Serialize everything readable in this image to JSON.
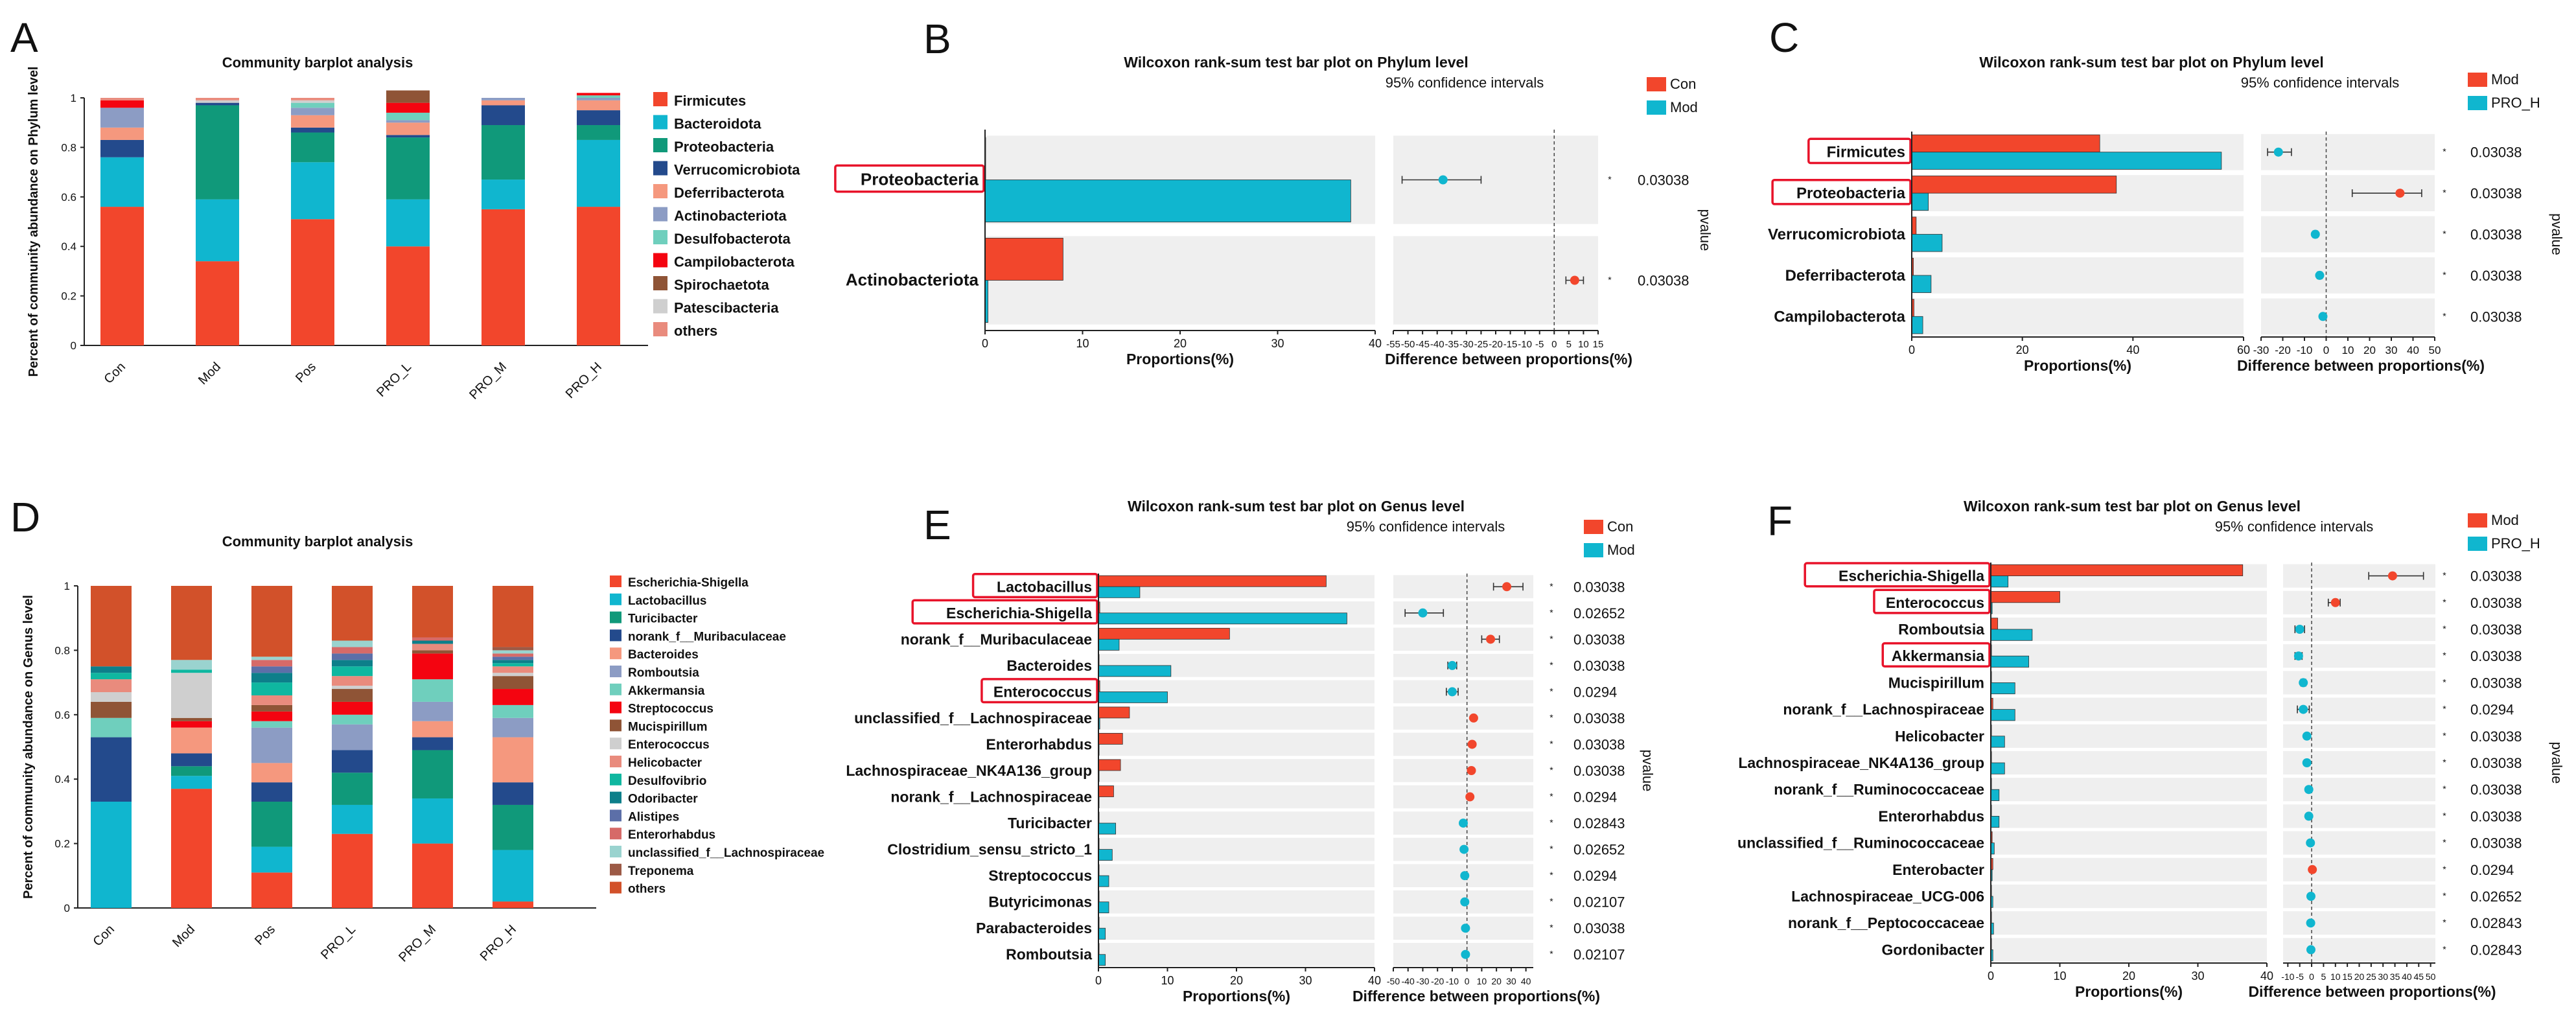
{
  "colors": {
    "red": "#f2462c",
    "teal": "#10b6cf",
    "panelbg": "#efefef",
    "frame": "#e8132a"
  },
  "panels": {
    "A": {
      "letter": "A",
      "title": "Community barplot analysis",
      "ylabel": "Percent of community abundance on Phylum level",
      "yticks": [
        "0",
        "0.2",
        "0.4",
        "0.6",
        "0.8",
        "1"
      ],
      "legend": [
        "Firmicutes",
        "Bacteroidota",
        "Proteobacteria",
        "Verrucomicrobiota",
        "Deferribacterota",
        "Actinobacteriota",
        "Desulfobacterota",
        "Campilobacterota",
        "Spirochaetota",
        "Patescibacteria",
        "others"
      ]
    },
    "B": {
      "letter": "B",
      "title": "Wilcoxon rank-sum test bar plot on Phylum level",
      "ci_label": "95% confidence intervals",
      "legend": [
        "Con",
        "Mod"
      ],
      "xlabel_left": "Proportions(%)",
      "xlabel_right": "Difference between proportions(%)",
      "pvalue_label": "pvalue",
      "left_ticks": [
        "0",
        "10",
        "20",
        "30",
        "40"
      ],
      "right_ticks": [
        "-55",
        "-50",
        "-45",
        "-40",
        "-35",
        "-30",
        "-25",
        "-20",
        "-15",
        "-10",
        "-5",
        "0",
        "5",
        "10",
        "15"
      ]
    },
    "C": {
      "letter": "C",
      "title": "Wilcoxon rank-sum test bar plot on Phylum level",
      "ci_label": "95% confidence intervals",
      "legend": [
        "Mod",
        "PRO_H"
      ],
      "xlabel_left": "Proportions(%)",
      "xlabel_right": "Difference between proportions(%)",
      "pvalue_label": "pvalue",
      "left_ticks": [
        "0",
        "20",
        "40",
        "60"
      ],
      "right_ticks": [
        "-30",
        "-20",
        "-10",
        "0",
        "10",
        "20",
        "30",
        "40",
        "50"
      ]
    },
    "D": {
      "letter": "D",
      "title": "Community barplot analysis",
      "ylabel": "Percent of community abundance on Genus level",
      "yticks": [
        "0",
        "0.2",
        "0.4",
        "0.6",
        "0.8",
        "1"
      ],
      "legend": [
        "Escherichia-Shigella",
        "Lactobacillus",
        "Turicibacter",
        "norank_f__Muribaculaceae",
        "Bacteroides",
        "Romboutsia",
        "Akkermansia",
        "Streptococcus",
        "Mucispirillum",
        "Enterococcus",
        "Helicobacter",
        "Desulfovibrio",
        "Odoribacter",
        "Alistipes",
        "Enterorhabdus",
        "unclassified_f__Lachnospiraceae",
        "Treponema",
        "others"
      ]
    },
    "E": {
      "letter": "E",
      "title": "Wilcoxon rank-sum test bar plot on Genus level",
      "ci_label": "95% confidence intervals",
      "legend": [
        "Con",
        "Mod"
      ],
      "xlabel_left": "Proportions(%)",
      "xlabel_right": "Difference between proportions(%)",
      "pvalue_label": "pvalue",
      "left_ticks": [
        "0",
        "10",
        "20",
        "30",
        "40"
      ],
      "right_ticks": [
        "-50",
        "-40",
        "-30",
        "-20",
        "-10",
        "0",
        "10",
        "20",
        "30",
        "40"
      ]
    },
    "F": {
      "letter": "F",
      "title": "Wilcoxon rank-sum test bar plot on Genus level",
      "ci_label": "95% confidence intervals",
      "legend": [
        "Mod",
        "PRO_H"
      ],
      "xlabel_left": "Proportions(%)",
      "xlabel_right": "Difference between proportions(%)",
      "pvalue_label": "pvalue",
      "left_ticks": [
        "0",
        "10",
        "20",
        "30",
        "40"
      ],
      "right_ticks": [
        "-10",
        "-5",
        "0",
        "5",
        "10",
        "15",
        "20",
        "25",
        "30",
        "35",
        "40",
        "45",
        "50"
      ]
    }
  },
  "chart_data": [
    {
      "id": "A",
      "type": "bar",
      "stacked": true,
      "categories": [
        "Con",
        "Mod",
        "Pos",
        "PRO_L",
        "PRO_M",
        "PRO_H"
      ],
      "ylim": [
        0,
        1
      ],
      "series": [
        {
          "name": "Firmicutes",
          "color": "#f2462c",
          "values": [
            0.56,
            0.34,
            0.51,
            0.4,
            0.55,
            0.56
          ]
        },
        {
          "name": "Bacteroidota",
          "color": "#10b6cf",
          "values": [
            0.2,
            0.25,
            0.23,
            0.19,
            0.12,
            0.27
          ]
        },
        {
          "name": "Proteobacteria",
          "color": "#10997a",
          "values": [
            0.0,
            0.38,
            0.12,
            0.25,
            0.22,
            0.06
          ]
        },
        {
          "name": "Verrucomicrobiota",
          "color": "#234a8c",
          "values": [
            0.07,
            0.01,
            0.02,
            0.01,
            0.08,
            0.06
          ]
        },
        {
          "name": "Deferribacterota",
          "color": "#f5987e",
          "values": [
            0.05,
            0.0,
            0.05,
            0.05,
            0.02,
            0.04
          ]
        },
        {
          "name": "Actinobacteriota",
          "color": "#8c9cc4",
          "values": [
            0.08,
            0.0,
            0.03,
            0.01,
            0.01,
            0.01
          ]
        },
        {
          "name": "Desulfobacterota",
          "color": "#6fcfbd",
          "values": [
            0.0,
            0.0,
            0.02,
            0.03,
            0.0,
            0.01
          ]
        },
        {
          "name": "Campilobacterota",
          "color": "#f40410",
          "values": [
            0.03,
            0.0,
            0.0,
            0.04,
            0.0,
            0.01
          ]
        },
        {
          "name": "Spirochaetota",
          "color": "#8f5436",
          "values": [
            0.0,
            0.0,
            0.0,
            0.05,
            0.0,
            0.0
          ]
        },
        {
          "name": "Patescibacteria",
          "color": "#cfcfcf",
          "values": [
            0.0,
            0.01,
            0.01,
            0.0,
            0.0,
            0.0
          ]
        },
        {
          "name": "others",
          "color": "#e98b7d",
          "values": [
            0.01,
            0.01,
            0.01,
            0.0,
            0.0,
            0.0
          ]
        }
      ]
    },
    {
      "id": "B",
      "type": "bar",
      "orientation": "horizontal",
      "categories": [
        "Proteobacteria",
        "Actinobacteriota"
      ],
      "series": [
        {
          "name": "Con",
          "values": [
            0.0,
            8.0
          ]
        },
        {
          "name": "Mod",
          "values": [
            37.5,
            0.3
          ]
        }
      ],
      "xlim": [
        0,
        40
      ],
      "difference": [
        -38,
        7
      ],
      "ci_low": [
        -52,
        4
      ],
      "ci_high": [
        -25,
        10
      ],
      "diff_xlim": [
        -55,
        15
      ],
      "pvalues": [
        "0.03038",
        "0.03038"
      ]
    },
    {
      "id": "C",
      "type": "bar",
      "orientation": "horizontal",
      "categories": [
        "Firmicutes",
        "Proteobacteria",
        "Verrucomicrobiota",
        "Deferribacterota",
        "Campilobacterota"
      ],
      "series": [
        {
          "name": "Mod",
          "values": [
            34,
            37,
            0.8,
            0.3,
            0.4
          ]
        },
        {
          "name": "PRO_H",
          "values": [
            56,
            3,
            5.5,
            3.5,
            2
          ]
        }
      ],
      "xlim": [
        0,
        60
      ],
      "difference": [
        -22,
        34,
        -5,
        -3,
        -1.5
      ],
      "ci_low": [
        -27,
        12,
        -6,
        -4,
        -2
      ],
      "ci_high": [
        -16,
        44,
        -4,
        -2,
        -1
      ],
      "diff_xlim": [
        -30,
        50
      ],
      "pvalues": [
        "0.03038",
        "0.03038",
        "0.03038",
        "0.03038",
        "0.03038"
      ]
    },
    {
      "id": "D",
      "type": "bar",
      "stacked": true,
      "categories": [
        "Con",
        "Mod",
        "Pos",
        "PRO_L",
        "PRO_M",
        "PRO_H"
      ],
      "ylim": [
        0,
        1
      ],
      "series": [
        {
          "name": "Escherichia-Shigella",
          "color": "#f2462c",
          "values": [
            0.0,
            0.37,
            0.11,
            0.23,
            0.2,
            0.02
          ]
        },
        {
          "name": "Lactobacillus",
          "color": "#10b6cf",
          "values": [
            0.33,
            0.04,
            0.08,
            0.09,
            0.14,
            0.16
          ]
        },
        {
          "name": "Turicibacter",
          "color": "#10997a",
          "values": [
            0.0,
            0.03,
            0.14,
            0.1,
            0.15,
            0.14
          ]
        },
        {
          "name": "norank_f__Muribaculaceae",
          "color": "#234a8c",
          "values": [
            0.2,
            0.04,
            0.06,
            0.07,
            0.04,
            0.07
          ]
        },
        {
          "name": "Bacteroides",
          "color": "#f5987e",
          "values": [
            0.0,
            0.08,
            0.06,
            0.0,
            0.05,
            0.14
          ]
        },
        {
          "name": "Romboutsia",
          "color": "#8c9cc4",
          "values": [
            0.0,
            0.0,
            0.11,
            0.08,
            0.06,
            0.06
          ]
        },
        {
          "name": "Akkermansia",
          "color": "#6fcfbd",
          "values": [
            0.06,
            0.0,
            0.02,
            0.03,
            0.07,
            0.04
          ]
        },
        {
          "name": "Streptococcus",
          "color": "#f40410",
          "values": [
            0.0,
            0.02,
            0.03,
            0.04,
            0.08,
            0.05
          ]
        },
        {
          "name": "Mucispirillum",
          "color": "#8f5436",
          "values": [
            0.05,
            0.01,
            0.02,
            0.04,
            0.01,
            0.04
          ]
        },
        {
          "name": "Enterococcus",
          "color": "#cfcfcf",
          "values": [
            0.03,
            0.14,
            0.0,
            0.01,
            0.0,
            0.01
          ]
        },
        {
          "name": "Helicobacter",
          "color": "#e98b7d",
          "values": [
            0.04,
            0.0,
            0.03,
            0.03,
            0.02,
            0.02
          ]
        },
        {
          "name": "Desulfovibrio",
          "color": "#0fb7a0",
          "values": [
            0.02,
            0.01,
            0.04,
            0.03,
            0.0,
            0.01
          ]
        },
        {
          "name": "Odoribacter",
          "color": "#0d7f8a",
          "values": [
            0.02,
            0.0,
            0.03,
            0.02,
            0.01,
            0.01
          ]
        },
        {
          "name": "Alistipes",
          "color": "#5c6fa8",
          "values": [
            0.0,
            0.0,
            0.02,
            0.02,
            0.0,
            0.01
          ]
        },
        {
          "name": "Enterorhabdus",
          "color": "#d66a68",
          "values": [
            0.0,
            0.0,
            0.02,
            0.02,
            0.01,
            0.01
          ]
        },
        {
          "name": "unclassified_f__Lachnospiraceae",
          "color": "#9ad3cf",
          "values": [
            0.0,
            0.03,
            0.01,
            0.02,
            0.0,
            0.01
          ]
        },
        {
          "name": "Treponema",
          "color": "#9c5a46",
          "values": [
            0.0,
            0.0,
            0.0,
            0.0,
            0.0,
            0.01
          ]
        },
        {
          "name": "others",
          "color": "#d2512a",
          "values": [
            0.25,
            0.23,
            0.22,
            0.17,
            0.16,
            0.19
          ]
        }
      ]
    },
    {
      "id": "E",
      "type": "bar",
      "orientation": "horizontal",
      "categories": [
        "Lactobacillus",
        "Escherichia-Shigella",
        "norank_f__Muribaculaceae",
        "Bacteroides",
        "Enterococcus",
        "unclassified_f__Lachnospiraceae",
        "Enterorhabdus",
        "Lachnospiraceae_NK4A136_group",
        "norank_f__Lachnospiraceae",
        "Turicibacter",
        "Clostridium_sensu_stricto_1",
        "Streptococcus",
        "Butyricimonas",
        "Parabacteroides",
        "Romboutsia"
      ],
      "series": [
        {
          "name": "Con",
          "values": [
            33,
            0.2,
            19,
            0.1,
            0.2,
            4.5,
            3.5,
            3.2,
            2.2,
            0.1,
            0.1,
            0.1,
            0.1,
            0.1,
            0.1
          ]
        },
        {
          "name": "Mod",
          "values": [
            6,
            36,
            3,
            10.5,
            10,
            0.2,
            0.1,
            0.1,
            0.1,
            2.5,
            2,
            1.5,
            1.5,
            1,
            1
          ]
        }
      ],
      "xlim": [
        0,
        40
      ],
      "difference": [
        27,
        -30,
        16,
        -10,
        -10,
        4.5,
        3.5,
        3,
        2,
        -2.5,
        -2,
        -1.5,
        -1.5,
        -1,
        -1
      ],
      "ci_low": [
        18,
        -42,
        10,
        -13,
        -14,
        3.5,
        3,
        2.5,
        1.5,
        -3,
        -2.5,
        -2,
        -2,
        -1.3,
        -1.3
      ],
      "ci_high": [
        38,
        -16,
        22,
        -7,
        -6,
        5.5,
        4.5,
        4,
        2.5,
        -2,
        -1.5,
        -1,
        -1,
        -0.7,
        -0.7
      ],
      "diff_xlim": [
        -50,
        45
      ],
      "pvalues": [
        "0.03038",
        "0.02652",
        "0.03038",
        "0.03038",
        "0.0294",
        "0.03038",
        "0.03038",
        "0.03038",
        "0.0294",
        "0.02843",
        "0.02652",
        "0.0294",
        "0.02107",
        "0.03038",
        "0.02107"
      ]
    },
    {
      "id": "F",
      "type": "bar",
      "orientation": "horizontal",
      "categories": [
        "Escherichia-Shigella",
        "Enterococcus",
        "Romboutsia",
        "Akkermansia",
        "Mucispirillum",
        "norank_f__Lachnospiraceae",
        "Helicobacter",
        "Lachnospiraceae_NK4A136_group",
        "norank_f__Ruminococcaceae",
        "Enterorhabdus",
        "unclassified_f__Ruminococcaceae",
        "Enterobacter",
        "Lachnospiraceae_UCG-006",
        "norank_f__Peptococcaceae",
        "Gordonibacter"
      ],
      "series": [
        {
          "name": "Mod",
          "values": [
            36.5,
            10,
            1,
            0.1,
            0.1,
            0.3,
            0.1,
            0.1,
            0.1,
            0.1,
            0.2,
            0.3,
            0.1,
            0.1,
            0.1
          ]
        },
        {
          "name": "PRO_H",
          "values": [
            2.5,
            0.2,
            6,
            5.5,
            3.5,
            3.5,
            2,
            2,
            1.2,
            1.2,
            0.5,
            0.2,
            0.3,
            0.4,
            0.3
          ]
        }
      ],
      "xlim": [
        0,
        40
      ],
      "difference": [
        34,
        10,
        -5,
        -5.5,
        -3.5,
        -3.5,
        -2,
        -2,
        -1.2,
        -1.2,
        -0.5,
        0.3,
        -0.3,
        -0.4,
        -0.3
      ],
      "ci_low": [
        24,
        7,
        -7,
        -7,
        -4.5,
        -6,
        -2.5,
        -2.5,
        -1.5,
        -1.5,
        -0.7,
        0.1,
        -0.4,
        -0.5,
        -0.4
      ],
      "ci_high": [
        47,
        12,
        -3,
        -4,
        -2.5,
        -1,
        -1.5,
        -1.5,
        -0.9,
        -0.9,
        -0.3,
        0.5,
        -0.2,
        -0.3,
        -0.2
      ],
      "diff_xlim": [
        -12,
        52
      ],
      "pvalues": [
        "0.03038",
        "0.03038",
        "0.03038",
        "0.03038",
        "0.03038",
        "0.0294",
        "0.03038",
        "0.03038",
        "0.03038",
        "0.03038",
        "0.03038",
        "0.0294",
        "0.02652",
        "0.02843",
        "0.02843"
      ]
    }
  ],
  "highlighted": {
    "B": [
      "Proteobacteria"
    ],
    "C": [
      "Firmicutes",
      "Proteobacteria"
    ],
    "E": [
      "Lactobacillus",
      "Escherichia-Shigella",
      "Enterococcus"
    ],
    "F": [
      "Escherichia-Shigella",
      "Enterococcus",
      "Akkermansia"
    ]
  }
}
